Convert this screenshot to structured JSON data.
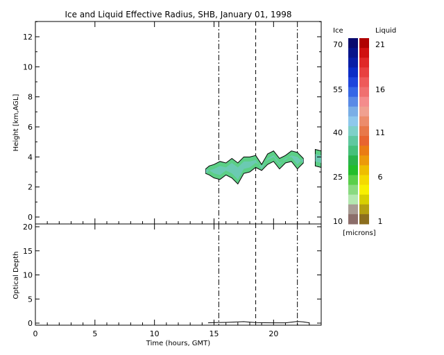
{
  "chart_data": [
    {
      "type": "heatmap",
      "title": "Ice and Liquid Effective Radius, SHB, January 01, 1998",
      "xlabel": "",
      "ylabel": "Height [km,AGL]",
      "xlim": [
        0,
        24
      ],
      "ylim": [
        0,
        13
      ],
      "y_ticks": [
        0,
        2,
        4,
        6,
        8,
        10,
        12
      ],
      "x_ticks": [
        0,
        5,
        10,
        15,
        20
      ],
      "vertical_lines": [
        {
          "x": 15.4,
          "style": "dash-dot"
        },
        {
          "x": 18.5,
          "style": "dashed"
        },
        {
          "x": 22.0,
          "style": "dash-dot"
        }
      ],
      "cloud_layer": {
        "x": [
          14.3,
          14.6,
          15.0,
          15.5,
          16.0,
          16.5,
          17.0,
          17.5,
          18.0,
          18.5,
          19.0,
          19.5,
          20.0,
          20.5,
          21.0,
          21.5,
          22.0,
          22.5,
          23.0,
          23.5,
          24.0
        ],
        "top": [
          3.2,
          3.4,
          3.5,
          3.7,
          3.6,
          3.9,
          3.6,
          4.0,
          4.0,
          4.1,
          3.5,
          4.2,
          4.4,
          3.9,
          4.1,
          4.4,
          4.3,
          3.9,
          4.2,
          4.5,
          4.4
        ],
        "base": [
          2.9,
          2.8,
          2.6,
          2.5,
          2.8,
          2.6,
          2.2,
          2.9,
          3.0,
          3.3,
          3.1,
          3.5,
          3.7,
          3.2,
          3.6,
          3.7,
          3.2,
          3.6,
          3.8,
          3.4,
          3.3
        ],
        "gaps": [
          [
            19.0,
            19.3
          ],
          [
            21.1,
            21.3
          ],
          [
            22.5,
            23.1
          ]
        ],
        "value_range_ice_microns": [
          25,
          45
        ]
      }
    },
    {
      "type": "line",
      "title": "",
      "xlabel": "Time (hours, GMT)",
      "ylabel": "Optical Depth",
      "xlim": [
        0,
        24
      ],
      "ylim": [
        0,
        20
      ],
      "x_ticks": [
        0,
        5,
        10,
        15,
        20
      ],
      "y_ticks": [
        0,
        5,
        10,
        15,
        20
      ],
      "series": [
        {
          "x": [
            14.5,
            15.0,
            16.0,
            16.5,
            17.0,
            17.5,
            18.0,
            18.5,
            20.0,
            21.0,
            21.5,
            22.0,
            22.5,
            23.0
          ],
          "values": [
            0.05,
            0.1,
            0.15,
            0.2,
            0.25,
            0.3,
            0.2,
            0.1,
            0.05,
            0.05,
            0.2,
            0.35,
            0.25,
            0.05
          ]
        }
      ]
    }
  ],
  "colorbar": {
    "ice_label": "Ice",
    "liquid_label": "Liquid",
    "units_label": "[microns]",
    "ice_ticks": [
      "70",
      "55",
      "40",
      "25",
      "10"
    ],
    "liquid_ticks": [
      "21",
      "16",
      "11",
      "6",
      "1"
    ],
    "ice_colors": [
      "#0a0a6e",
      "#08148a",
      "#0a1ea6",
      "#0c2cc6",
      "#1e44dc",
      "#3666e6",
      "#5a8ae6",
      "#7aaee6",
      "#8ec8ec",
      "#7ed0c8",
      "#60c8a0",
      "#46c07a",
      "#2ab44a",
      "#22be2a",
      "#5acf4a",
      "#8ada80",
      "#b4e8b0",
      "#a89c94",
      "#8c6e6a"
    ],
    "liquid_colors": [
      "#b00000",
      "#d01010",
      "#e02828",
      "#e84040",
      "#ee5a5a",
      "#f07070",
      "#f48c8c",
      "#f0a090",
      "#ec8c6c",
      "#e8784a",
      "#e86430",
      "#ea7c14",
      "#ec9a0a",
      "#eebe00",
      "#f4da00",
      "#f8f000",
      "#d8d000",
      "#b4a010",
      "#8c6e1e"
    ]
  }
}
